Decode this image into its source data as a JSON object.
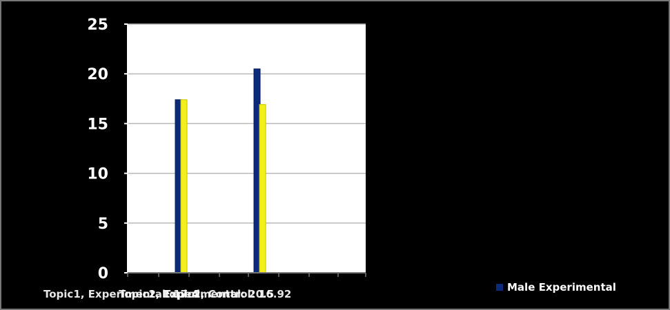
{
  "chart_data": {
    "type": "bar",
    "ylim": [
      0,
      25
    ],
    "y_ticks": [
      0,
      5,
      10,
      15,
      20,
      25
    ],
    "grid": true,
    "series": [
      {
        "name": "Male Experimental",
        "color": "#0b2a7a",
        "values": [
          17.4,
          20.5
        ]
      },
      {
        "name": "Control",
        "color": "#f2ef1a",
        "values": [
          17.4,
          16.92
        ]
      }
    ],
    "data_labels": [
      "Topic1, Experimental: 17.4",
      "Topic2, Experimental: 20.5",
      "Topic2, Control: 16.92"
    ],
    "legend": {
      "position": "bottom-right",
      "entries": [
        "Male Experimental"
      ]
    }
  }
}
